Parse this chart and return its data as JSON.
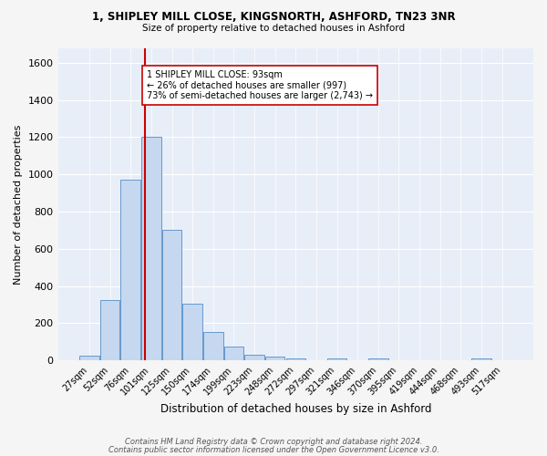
{
  "title_line1": "1, SHIPLEY MILL CLOSE, KINGSNORTH, ASHFORD, TN23 3NR",
  "title_line2": "Size of property relative to detached houses in Ashford",
  "xlabel": "Distribution of detached houses by size in Ashford",
  "ylabel": "Number of detached properties",
  "bar_labels": [
    "27sqm",
    "52sqm",
    "76sqm",
    "101sqm",
    "125sqm",
    "150sqm",
    "174sqm",
    "199sqm",
    "223sqm",
    "248sqm",
    "272sqm",
    "297sqm",
    "321sqm",
    "346sqm",
    "370sqm",
    "395sqm",
    "419sqm",
    "444sqm",
    "468sqm",
    "493sqm",
    "517sqm"
  ],
  "bar_values": [
    25,
    325,
    970,
    1200,
    700,
    305,
    155,
    75,
    30,
    20,
    13,
    0,
    10,
    0,
    12,
    0,
    0,
    0,
    0,
    12,
    0
  ],
  "bar_color": "#c5d8f0",
  "bar_edge_color": "#6699cc",
  "background_color": "#e8eef8",
  "grid_color": "#ffffff",
  "vline_color": "#cc0000",
  "annotation_text": "1 SHIPLEY MILL CLOSE: 93sqm\n← 26% of detached houses are smaller (997)\n73% of semi-detached houses are larger (2,743) →",
  "annotation_box_color": "#ffffff",
  "annotation_box_edge_color": "#cc0000",
  "ylim": [
    0,
    1680
  ],
  "yticks": [
    0,
    200,
    400,
    600,
    800,
    1000,
    1200,
    1400,
    1600
  ],
  "footer_line1": "Contains HM Land Registry data © Crown copyright and database right 2024.",
  "footer_line2": "Contains public sector information licensed under the Open Government Licence v3.0.",
  "fig_facecolor": "#f5f5f5"
}
